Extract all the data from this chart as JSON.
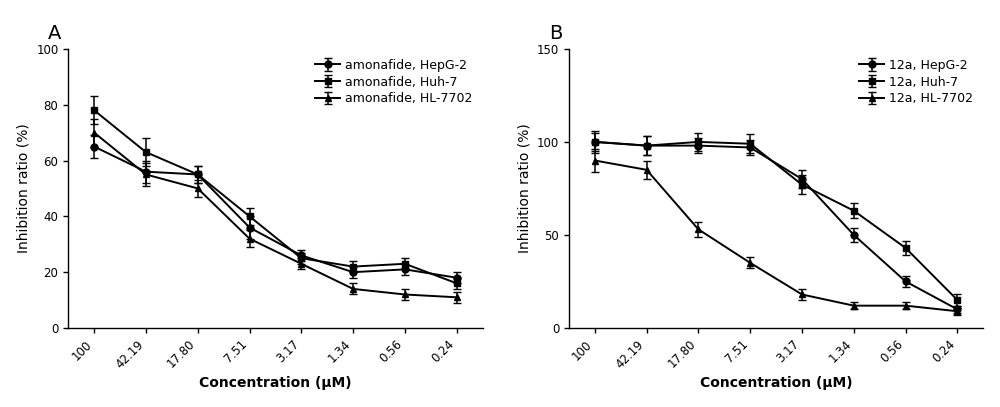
{
  "x_labels": [
    "100",
    "42.19",
    "17.80",
    "7.51",
    "3.17",
    "1.34",
    "0.56",
    "0.24"
  ],
  "x_positions": [
    0,
    1,
    2,
    3,
    4,
    5,
    6,
    7
  ],
  "A_title": "A",
  "A_ylabel": "Inhibition ratio (%)",
  "A_xlabel": "Concentration (μM)",
  "A_ylim": [
    0,
    100
  ],
  "A_yticks": [
    0,
    20,
    40,
    60,
    80,
    100
  ],
  "A_HepG2_y": [
    65,
    56,
    55,
    36,
    26,
    20,
    21,
    18
  ],
  "A_HepG2_err": [
    4,
    4,
    3,
    4,
    2,
    2,
    2,
    2
  ],
  "A_Huh7_y": [
    78,
    63,
    55,
    40,
    25,
    22,
    23,
    16
  ],
  "A_Huh7_err": [
    5,
    5,
    3,
    3,
    2,
    2,
    2,
    2
  ],
  "A_HL7702_y": [
    70,
    55,
    50,
    32,
    23,
    14,
    12,
    11
  ],
  "A_HL7702_err": [
    5,
    4,
    3,
    3,
    2,
    2,
    2,
    2
  ],
  "A_legend": [
    "amonafide, HepG-2",
    "amonafide, Huh-7",
    "amonafide, HL-7702"
  ],
  "B_title": "B",
  "B_ylabel": "Inhibition ratio (%)",
  "B_xlabel": "Concentration (μM)",
  "B_ylim": [
    0,
    150
  ],
  "B_yticks": [
    0,
    50,
    100,
    150
  ],
  "B_HepG2_y": [
    100,
    98,
    98,
    97,
    80,
    50,
    25,
    10
  ],
  "B_HepG2_err": [
    5,
    5,
    4,
    4,
    5,
    4,
    3,
    2
  ],
  "B_Huh7_y": [
    100,
    98,
    100,
    99,
    77,
    63,
    43,
    15
  ],
  "B_Huh7_err": [
    6,
    5,
    5,
    5,
    5,
    4,
    4,
    3
  ],
  "B_HL7702_y": [
    90,
    85,
    53,
    35,
    18,
    12,
    12,
    9
  ],
  "B_HL7702_err": [
    6,
    5,
    4,
    3,
    3,
    2,
    2,
    2
  ],
  "B_legend": [
    "12a, HepG-2",
    "12a, Huh-7",
    "12a, HL-7702"
  ],
  "line_color": "#000000",
  "marker_circle": "o",
  "marker_square": "s",
  "marker_triangle": "^",
  "markersize": 5,
  "linewidth": 1.4,
  "capsize": 3,
  "elinewidth": 1.1,
  "legend_fontsize": 9,
  "axis_label_fontsize": 10,
  "tick_fontsize": 8.5,
  "panel_label_fontsize": 14
}
